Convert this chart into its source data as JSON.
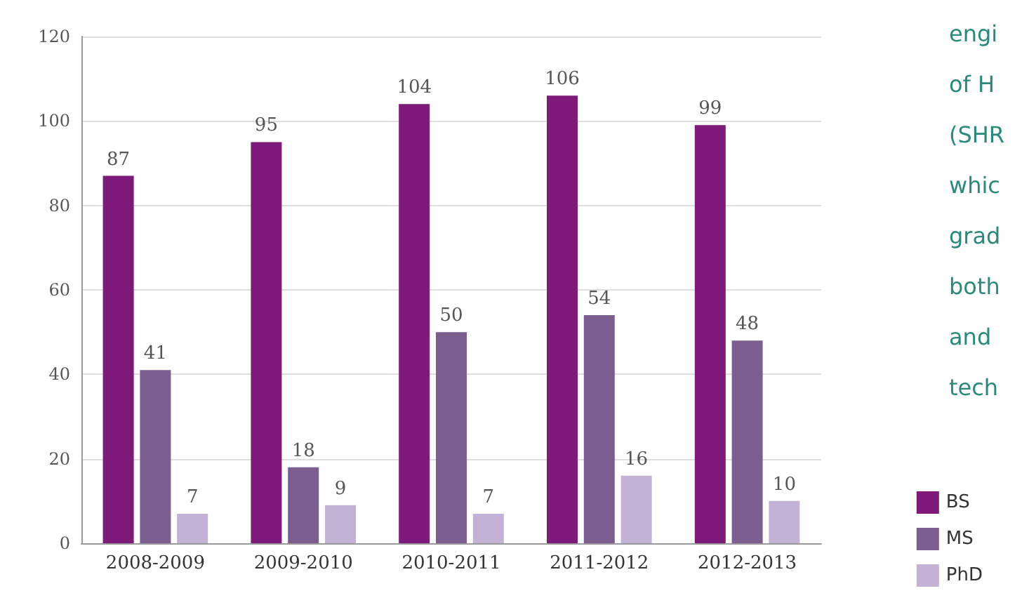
{
  "chart_data": {
    "type": "bar",
    "categories": [
      "2008-2009",
      "2009-2010",
      "2010-2011",
      "2011-2012",
      "2012-2013"
    ],
    "series": [
      {
        "name": "BS",
        "color": "#7d1a7a",
        "values": [
          87,
          95,
          104,
          106,
          99
        ]
      },
      {
        "name": "MS",
        "color": "#7b5d90",
        "values": [
          41,
          18,
          50,
          54,
          48
        ]
      },
      {
        "name": "PhD",
        "color": "#c4b2d6",
        "values": [
          7,
          9,
          7,
          16,
          10
        ]
      }
    ],
    "ylim": [
      0,
      120
    ],
    "yticks": [
      0,
      20,
      40,
      60,
      80,
      100,
      120
    ],
    "grid": "y",
    "legend": "bottom right",
    "data_labels": true,
    "annotations": [
      "engi",
      "of H",
      "(SHR",
      "whic",
      "grad",
      "both",
      "and",
      "tech"
    ]
  }
}
